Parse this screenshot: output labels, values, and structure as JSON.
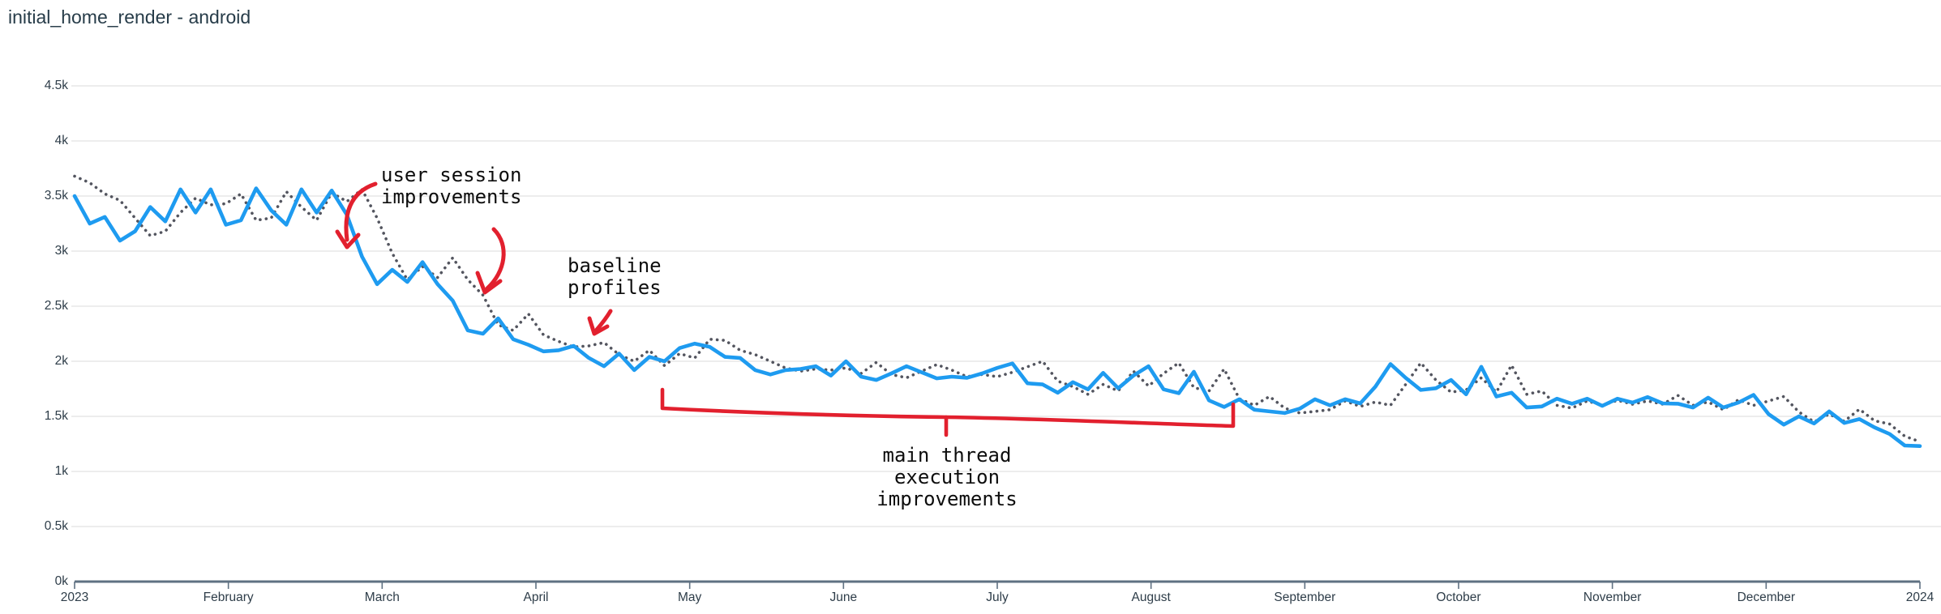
{
  "title": "initial_home_render - android",
  "colors": {
    "series_blue": "#1e9bf0",
    "series_gray": "#53555f",
    "annotation_red": "#e2202e",
    "grid": "#e7e7e7",
    "axis": "#5f7182",
    "tick_text": "#2e3d49",
    "title_text": "#273c49"
  },
  "chart_data": {
    "type": "line",
    "title": "initial_home_render - android",
    "xlabel": "",
    "ylabel": "",
    "ylim": [
      0,
      4500
    ],
    "grid": "horizontal",
    "legend": "none",
    "x_axis": {
      "tick_labels": [
        "2023",
        "February",
        "March",
        "April",
        "May",
        "June",
        "July",
        "August",
        "September",
        "October",
        "November",
        "December",
        "2024"
      ]
    },
    "y_axis": {
      "tick_labels": [
        "4.5k",
        "4k",
        "3.5k",
        "3k",
        "2.5k",
        "2k",
        "1.5k",
        "1k",
        "0.5k",
        "0k"
      ],
      "min": 0,
      "max": 4500
    },
    "x_step_days": 3,
    "series": [
      {
        "id": "solid_line",
        "style": "solid",
        "color_key": "series_blue",
        "values": [
          3500,
          3250,
          3310,
          3095,
          3180,
          3400,
          3270,
          3560,
          3350,
          3560,
          3240,
          3280,
          3570,
          3370,
          3240,
          3560,
          3350,
          3550,
          3330,
          2950,
          2700,
          2830,
          2720,
          2900,
          2700,
          2550,
          2280,
          2250,
          2390,
          2200,
          2150,
          2090,
          2100,
          2140,
          2030,
          1955,
          2070,
          1920,
          2040,
          2000,
          2120,
          2160,
          2130,
          2040,
          2030,
          1920,
          1880,
          1920,
          1930,
          1955,
          1870,
          2000,
          1860,
          1830,
          1890,
          1955,
          1900,
          1845,
          1860,
          1850,
          1890,
          1940,
          1980,
          1800,
          1790,
          1715,
          1810,
          1745,
          1895,
          1755,
          1870,
          1955,
          1745,
          1710,
          1905,
          1645,
          1585,
          1655,
          1560,
          1545,
          1530,
          1570,
          1655,
          1600,
          1655,
          1618,
          1770,
          1975,
          1850,
          1740,
          1755,
          1830,
          1700,
          1950,
          1680,
          1715,
          1580,
          1590,
          1660,
          1615,
          1660,
          1595,
          1660,
          1625,
          1675,
          1618,
          1615,
          1580,
          1670,
          1580,
          1625,
          1695,
          1520,
          1425,
          1500,
          1435,
          1545,
          1440,
          1475,
          1400,
          1340,
          1235,
          1230
        ]
      },
      {
        "id": "dotted_line",
        "style": "dotted",
        "color_key": "series_gray",
        "values": [
          3680,
          3620,
          3520,
          3460,
          3300,
          3140,
          3180,
          3350,
          3480,
          3420,
          3430,
          3520,
          3280,
          3300,
          3540,
          3400,
          3280,
          3530,
          3450,
          3560,
          3300,
          2980,
          2740,
          2860,
          2760,
          2940,
          2740,
          2600,
          2330,
          2280,
          2430,
          2240,
          2180,
          2130,
          2140,
          2170,
          2060,
          2000,
          2100,
          1960,
          2070,
          2030,
          2200,
          2190,
          2100,
          2060,
          2000,
          1940,
          1910,
          1930,
          1920,
          1940,
          1890,
          1990,
          1880,
          1850,
          1910,
          1970,
          1920,
          1860,
          1880,
          1860,
          1900,
          1950,
          2000,
          1820,
          1770,
          1700,
          1790,
          1730,
          1910,
          1775,
          1890,
          1985,
          1760,
          1730,
          1930,
          1660,
          1600,
          1680,
          1575,
          1530,
          1545,
          1560,
          1640,
          1590,
          1630,
          1600,
          1790,
          1985,
          1830,
          1720,
          1740,
          1850,
          1720,
          1965,
          1700,
          1730,
          1600,
          1575,
          1640,
          1600,
          1645,
          1610,
          1640,
          1610,
          1690,
          1600,
          1630,
          1560,
          1650,
          1600,
          1640,
          1680,
          1540,
          1450,
          1520,
          1455,
          1565,
          1460,
          1430,
          1320,
          1270
        ]
      }
    ],
    "annotations": [
      {
        "id": "user-session",
        "text": "user session\nimprovements"
      },
      {
        "id": "baseline-profiles",
        "text": "baseline\nprofiles"
      },
      {
        "id": "main-thread",
        "text": "main thread\nexecution\nimprovements"
      }
    ]
  }
}
